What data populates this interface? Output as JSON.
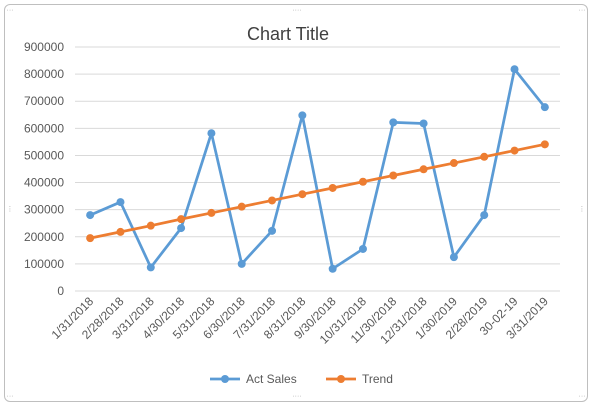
{
  "chart_data": {
    "type": "line",
    "title": "Chart Title",
    "xlabel": "",
    "ylabel": "",
    "categories": [
      "1/31/2018",
      "2/28/2018",
      "3/31/2018",
      "4/30/2018",
      "5/31/2018",
      "6/30/2018",
      "7/31/2018",
      "8/31/2018",
      "9/30/2018",
      "10/31/2018",
      "11/30/2018",
      "12/31/2018",
      "1/30/2019",
      "2/28/2019",
      "30-02-19",
      "3/31/2019"
    ],
    "y_ticks": [
      "0",
      "100000",
      "200000",
      "300000",
      "400000",
      "500000",
      "600000",
      "700000",
      "800000",
      "900000"
    ],
    "ylim": [
      0,
      900000
    ],
    "grid": true,
    "legend_position": "bottom",
    "series": [
      {
        "name": "Act Sales",
        "color": "#5b9bd5",
        "values": [
          280000,
          328000,
          87000,
          232000,
          582000,
          100000,
          222000,
          648000,
          82000,
          155000,
          622000,
          618000,
          125000,
          280000,
          818000,
          678000
        ]
      },
      {
        "name": "Trend",
        "color": "#ed7d31",
        "values": [
          195000,
          218000,
          241000,
          265000,
          288000,
          311000,
          334000,
          357000,
          380000,
          403000,
          426000,
          449000,
          472000,
          495000,
          518000,
          541000
        ]
      }
    ]
  }
}
